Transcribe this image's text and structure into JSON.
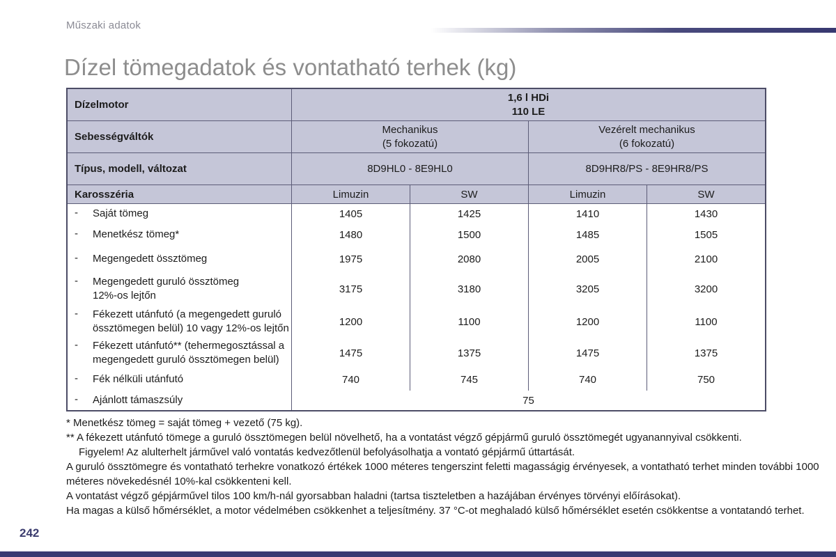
{
  "header": {
    "section": "Műszaki adatok"
  },
  "title": "Dízel tömegadatok és vontatható terhek (kg)",
  "table": {
    "marker": "-",
    "engine": {
      "label": "Dízelmotor",
      "name": "1,6 l HDi",
      "power": "110 LE"
    },
    "gearboxes": {
      "label": "Sebességváltók",
      "items": [
        {
          "type": "Mechanikus",
          "detail": "(5 fokozatú)"
        },
        {
          "type": "Vezérelt mechanikus",
          "detail": "(6 fokozatú)"
        }
      ]
    },
    "types": {
      "label": "Típus, modell, változat",
      "items": [
        "8D9HL0 - 8E9HL0",
        "8D9HR8/PS - 8E9HR8/PS"
      ]
    },
    "body": {
      "label": "Karosszéria",
      "items": [
        "Limuzin",
        "SW",
        "Limuzin",
        "SW"
      ]
    },
    "rows": [
      {
        "label": "Saját tömeg",
        "values": [
          "1405",
          "1425",
          "1410",
          "1430"
        ]
      },
      {
        "label": "Menetkész tömeg*",
        "values": [
          "1480",
          "1500",
          "1485",
          "1505"
        ]
      },
      {
        "label": "Megengedett össztömeg",
        "values": [
          "1975",
          "2080",
          "2005",
          "2100"
        ]
      },
      {
        "label": "Megengedett guruló össztömeg\n12%-os lejtőn",
        "values": [
          "3175",
          "3180",
          "3205",
          "3200"
        ]
      },
      {
        "label": "Fékezett utánfutó (a megengedett guruló\nössztömegen belül) 10 vagy 12%-os lejtőn",
        "values": [
          "1200",
          "1100",
          "1200",
          "1100"
        ]
      },
      {
        "label": "Fékezett utánfutó** (tehermegosztással a\nmegengedett guruló össztömegen belül)",
        "values": [
          "1475",
          "1375",
          "1475",
          "1375"
        ]
      },
      {
        "label": "Fék nélküli utánfutó",
        "values": [
          "740",
          "745",
          "740",
          "750"
        ]
      }
    ],
    "support_row": {
      "label": "Ajánlott támaszsúly",
      "value": "75"
    }
  },
  "footnotes": {
    "line1": "* Menetkész tömeg = saját tömeg + vezető (75 kg).",
    "line2": "** A fékezett utánfutó tömege a guruló össztömegen belül növelhető, ha a vontatást végző gépjármű guruló össztömegét ugyanannyival csökkenti.",
    "line3": "Figyelem! Az alulterhelt járművel való vontatás kedvezőtlenül befolyásolhatja a vontató gépjármű úttartását.",
    "line4": "A guruló össztömegre és vontatható terhekre vonatkozó értékek 1000 méteres tengerszint feletti magasságig érvényesek, a vontatható terhet minden további 1000 méteres növekedésnél 10%-kal csökkenteni kell.",
    "line5": "A vontatást végző gépjárművel tilos 100 km/h-nál gyorsabban haladni (tartsa tiszteletben a hazájában érvényes törvényi előírásokat).",
    "line6": "Ha magas a külső hőmérséklet, a motor védelmében csökkenhet a teljesítmény. 37 °C-ot meghaladó külső hőmérséklet esetén csökkentse a vontatandó terhet."
  },
  "footer": {
    "page_number": "242"
  },
  "colors": {
    "accent_navy": "#3a3b72",
    "table_header_bg": "#c5c6d8",
    "table_border": "#4c4c66",
    "title_gray": "#8d8d8d",
    "page_number_navy": "#3c3d6f"
  }
}
